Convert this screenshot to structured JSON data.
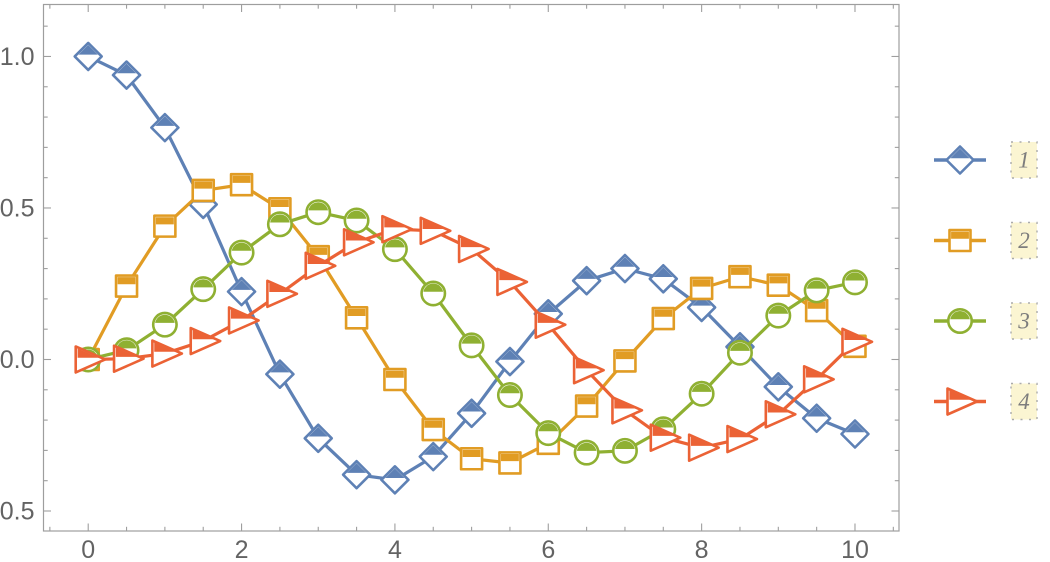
{
  "chart_data": {
    "type": "line",
    "title": "",
    "xlabel": "",
    "ylabel": "",
    "grid": false,
    "frame": true,
    "x": [
      0,
      0.5,
      1,
      1.5,
      2,
      2.5,
      3,
      3.5,
      4,
      4.5,
      5,
      5.5,
      6,
      6.5,
      7,
      7.5,
      8,
      8.5,
      9,
      9.5,
      10
    ],
    "series": [
      {
        "label": "1",
        "color": "#5E81B5",
        "marker": "diamond",
        "values": [
          1.0,
          0.9385,
          0.7652,
          0.5118,
          0.2239,
          -0.0484,
          -0.2601,
          -0.3801,
          -0.3971,
          -0.3205,
          -0.1776,
          -0.0068,
          0.1506,
          0.2601,
          0.3001,
          0.2663,
          0.1717,
          0.0419,
          -0.0903,
          -0.1939,
          -0.2459
        ]
      },
      {
        "label": "2",
        "color": "#E19C24",
        "marker": "square",
        "values": [
          0.0,
          0.2423,
          0.4401,
          0.5579,
          0.5767,
          0.4971,
          0.3391,
          0.1374,
          -0.066,
          -0.2311,
          -0.3276,
          -0.3414,
          -0.2767,
          -0.1538,
          -0.0047,
          0.1352,
          0.2346,
          0.2731,
          0.2453,
          0.1613,
          0.0435
        ]
      },
      {
        "label": "3",
        "color": "#8FB032",
        "marker": "circle",
        "values": [
          0.0,
          0.0306,
          0.1149,
          0.2321,
          0.3528,
          0.4461,
          0.4861,
          0.4586,
          0.3641,
          0.2178,
          0.0466,
          -0.1173,
          -0.2429,
          -0.3074,
          -0.3014,
          -0.2303,
          -0.113,
          0.0223,
          0.1448,
          0.2279,
          0.2546
        ]
      },
      {
        "label": "4",
        "color": "#EB6235",
        "marker": "triangle-right",
        "values": [
          0.0,
          0.0026,
          0.0196,
          0.061,
          0.1289,
          0.2166,
          0.3091,
          0.3868,
          0.4302,
          0.4247,
          0.3648,
          0.2561,
          0.1148,
          -0.0353,
          -0.1676,
          -0.2581,
          -0.2911,
          -0.2626,
          -0.1809,
          -0.0653,
          0.0584
        ]
      }
    ],
    "xlim": [
      -0.583,
      10.574
    ],
    "ylim": [
      -0.566,
      1.1715
    ],
    "x_ticks": {
      "values": [
        0,
        2,
        4,
        6,
        8,
        10
      ],
      "labels": [
        "0",
        "2",
        "4",
        "6",
        "8",
        "10"
      ],
      "minor_step": 0.5,
      "minor_range": [
        -0.5,
        10.5
      ]
    },
    "y_ticks": {
      "values": [
        1,
        0.5,
        0,
        -0.5
      ],
      "labels": [
        "1.0",
        "0.5",
        "0.0",
        "−0.5"
      ],
      "minor_step": 0.1,
      "minor_range": [
        -0.5,
        1.1
      ]
    },
    "legend": {
      "position": "right-outside",
      "items": [
        {
          "label": "1"
        },
        {
          "label": "2"
        },
        {
          "label": "3"
        },
        {
          "label": "4"
        }
      ]
    }
  },
  "style": {
    "background": "#ffffff",
    "frame_color": "#9E9E9E",
    "tick_color": "#9E9E9E",
    "tick_label_color": "#636363",
    "legend_label_color": "#7d7d7d",
    "legend_box_bg": "#FBF5D2",
    "legend_box_border": "#ABABAB",
    "series_colors": [
      "#5E81B5",
      "#E19C24",
      "#8FB032",
      "#EB6235"
    ],
    "line_width": 3.2,
    "marker_stroke_width": 2.6
  }
}
